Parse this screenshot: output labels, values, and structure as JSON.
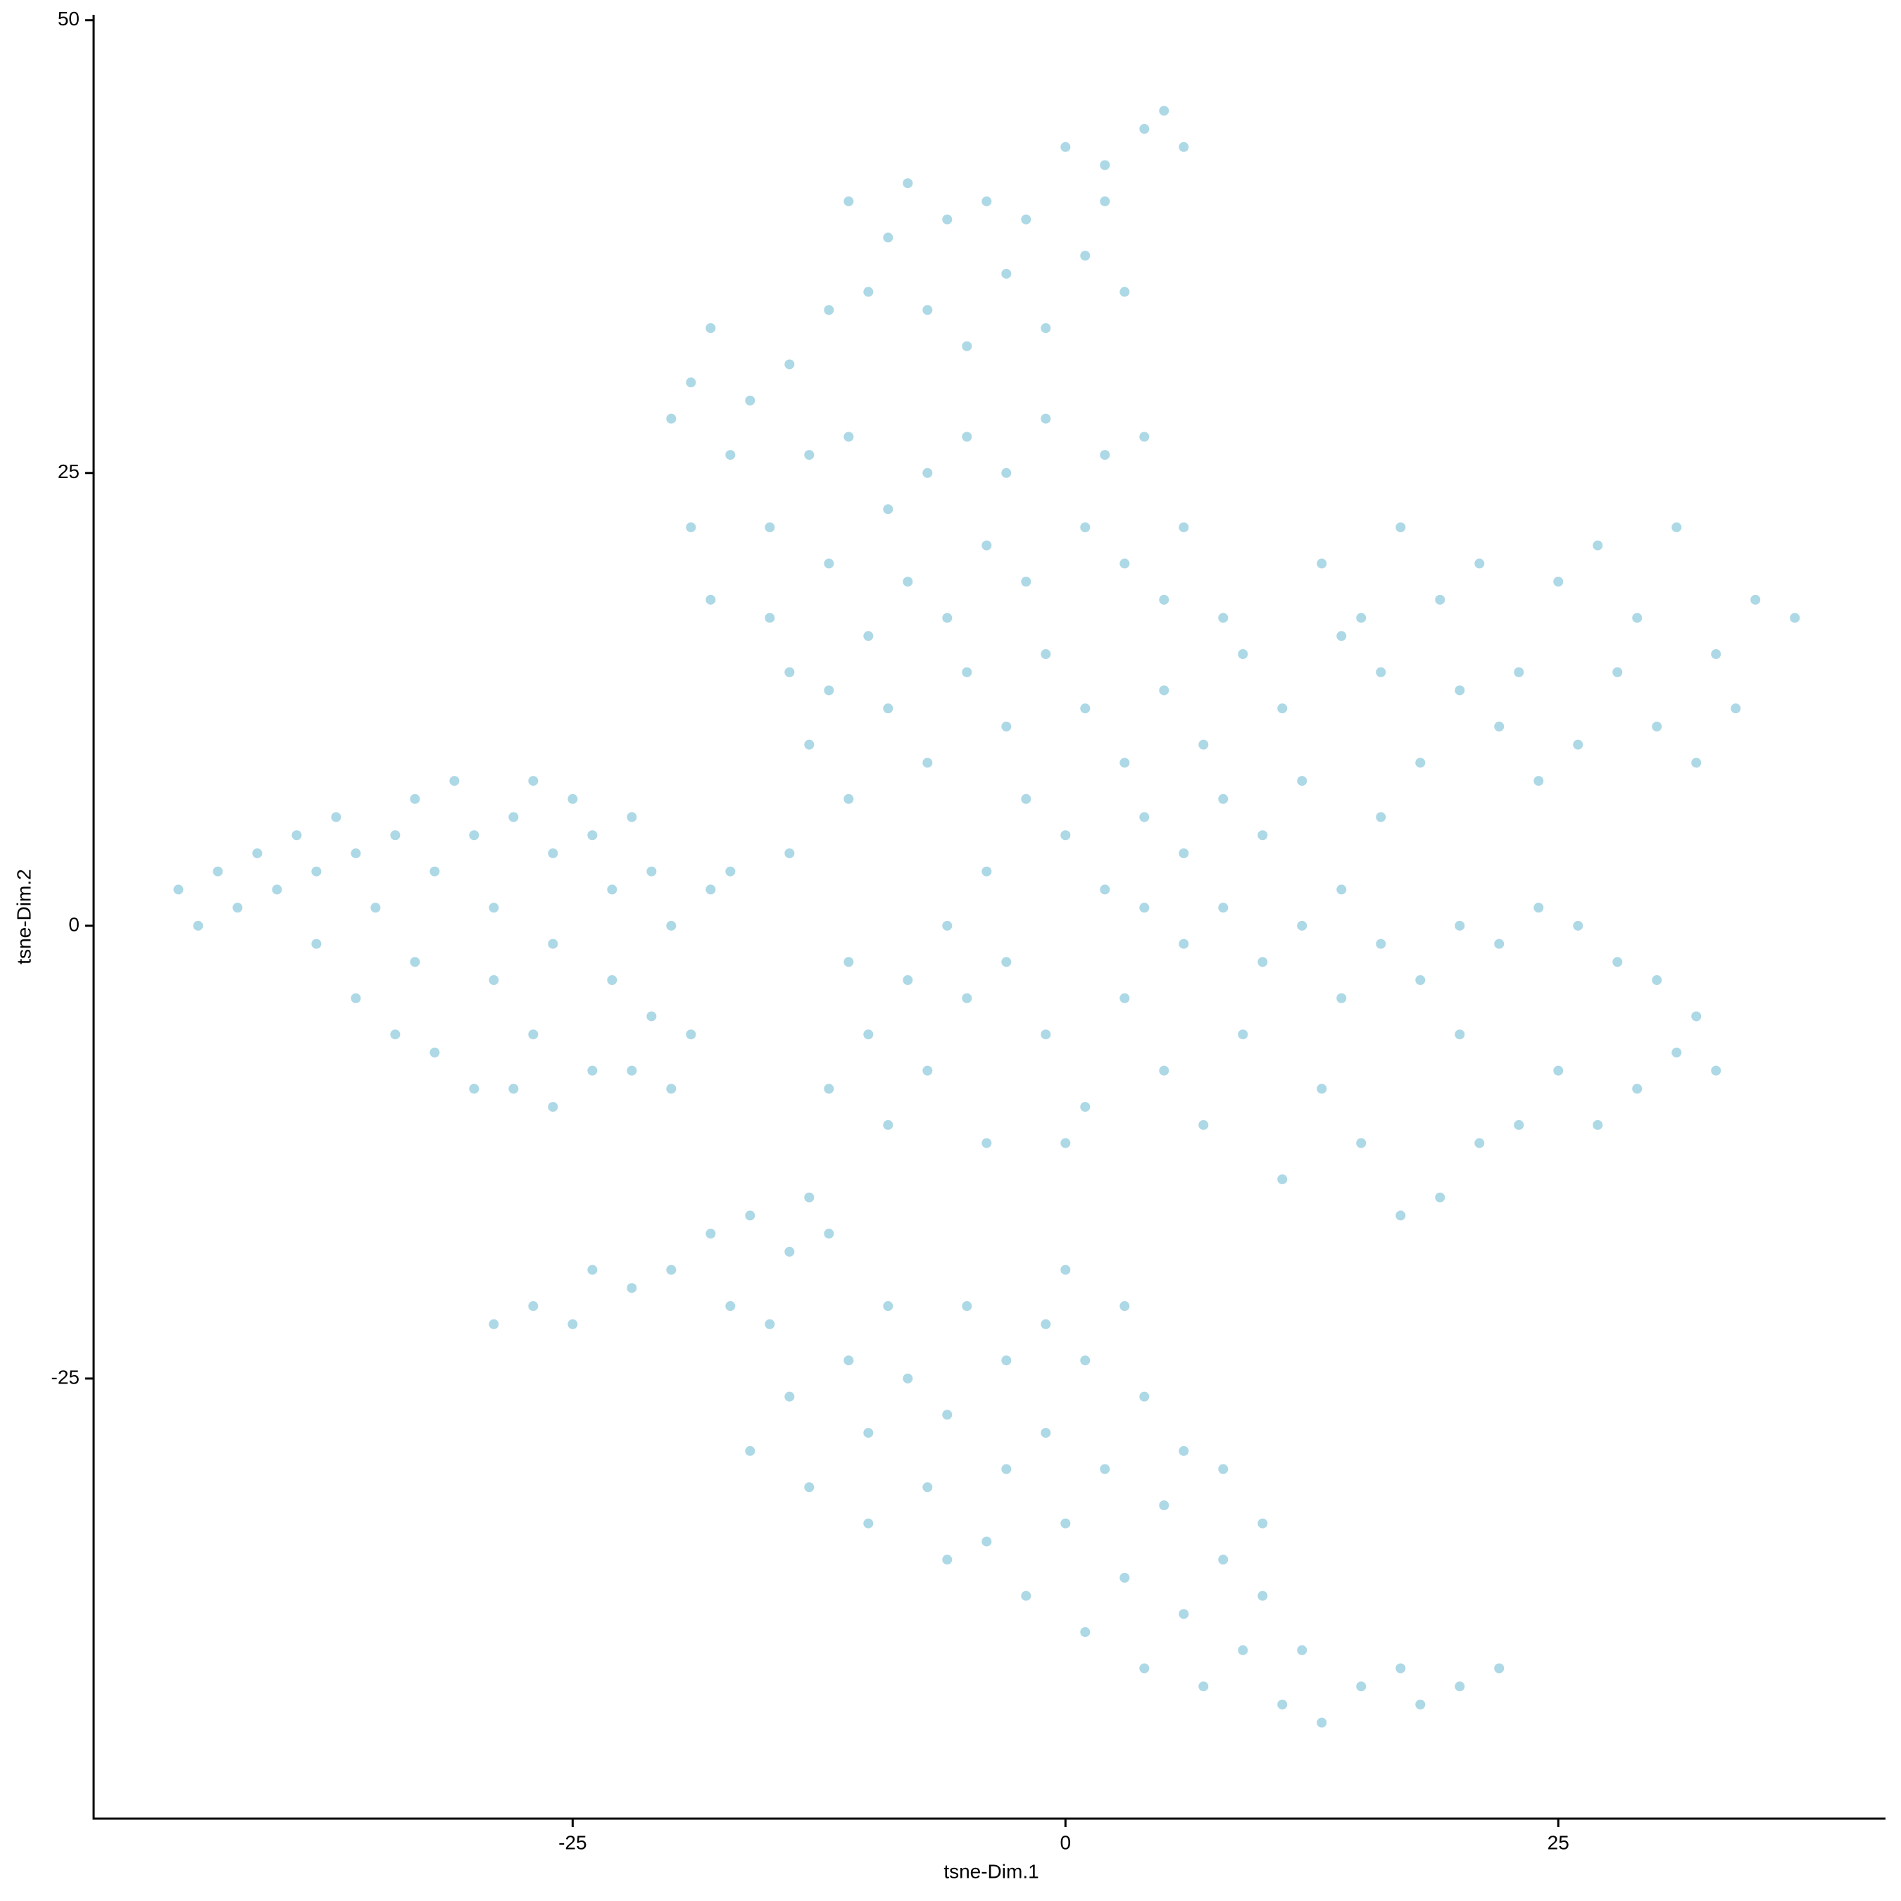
{
  "chart_data": {
    "type": "scatter",
    "x_label": "tsne-Dim.1",
    "y_label": "tsne-Dim.2",
    "color": "#add8e6",
    "grid": false,
    "xlim": [
      -49.3,
      41.6
    ],
    "ylim": [
      -49.3,
      50.3
    ],
    "xticks": [
      -25,
      0,
      25
    ],
    "yticks": [
      -25,
      0,
      25,
      50
    ],
    "x": [
      -45,
      -44,
      -43,
      -42,
      -41,
      -40,
      -39,
      -38,
      -37,
      -36,
      -35,
      -34,
      -33,
      -32,
      -31,
      -30,
      -29,
      -28,
      -27,
      -26,
      -25,
      -24,
      -23,
      -22,
      -21,
      -20,
      -18,
      -17,
      -36,
      -34,
      -32,
      -30,
      -28,
      -26,
      -24,
      -22,
      -20,
      -19,
      -33,
      -29,
      -26,
      -23,
      -38,
      -27,
      -21,
      -29,
      -27,
      -25,
      -24,
      -22,
      -20,
      -18,
      -17,
      -16,
      -14,
      -13,
      -12,
      -15,
      -16,
      -14,
      -13,
      -11,
      -10,
      -9,
      -8,
      -7,
      -6,
      -5,
      -4,
      -3,
      -3,
      -2,
      -1,
      0,
      0,
      1,
      1,
      2,
      3,
      4,
      4,
      5,
      6,
      6,
      7,
      8,
      9,
      10,
      11,
      12,
      13,
      15,
      17,
      18,
      20,
      22,
      3,
      -10,
      -6,
      -1,
      8,
      10,
      -11,
      -9,
      -8,
      -6,
      -4,
      -2,
      0,
      2,
      4,
      5,
      6,
      -12,
      -10,
      -7,
      -5,
      -3,
      -1,
      1,
      3,
      2,
      -14,
      -18,
      -19,
      -20,
      -16,
      -17,
      -19,
      -18,
      -15,
      -13,
      -11,
      -9,
      -7,
      -5,
      -3,
      -1,
      2,
      4,
      6,
      5,
      3,
      1,
      -2,
      -4,
      -6,
      -8,
      -10,
      -12,
      -14,
      -15,
      -13,
      -11,
      -9,
      -7,
      -5,
      -3,
      -1,
      1,
      3,
      5,
      7,
      9,
      11,
      13,
      15,
      17,
      19,
      21,
      23,
      25,
      27,
      29,
      31,
      33,
      35,
      37,
      34,
      32,
      30,
      28,
      26,
      24,
      22,
      20,
      18,
      16,
      14,
      12,
      10,
      8,
      6,
      4,
      2,
      0,
      -2,
      -4,
      -6,
      -8,
      -10,
      -12,
      -11,
      -9,
      -7,
      -5,
      -3,
      -1,
      1,
      3,
      5,
      7,
      9,
      11,
      13,
      15,
      17,
      19,
      21,
      23,
      25,
      27,
      29,
      31,
      33,
      32,
      30,
      28,
      26,
      24,
      22,
      20,
      18,
      16,
      14,
      12,
      10,
      8,
      6,
      4,
      -14,
      -4,
      0,
      14,
      20,
      16,
      8,
      -12
    ],
    "values": [
      2,
      0,
      3,
      1,
      4,
      2,
      5,
      3,
      6,
      4,
      1,
      5,
      7,
      3,
      8,
      5,
      1,
      6,
      8,
      4,
      7,
      5,
      2,
      6,
      3,
      0,
      2,
      3,
      -4,
      -6,
      -7,
      -9,
      -9,
      -10,
      -8,
      -8,
      -9,
      -6,
      -2,
      -3,
      -1,
      -3,
      -1,
      -6,
      -5,
      -22,
      -21,
      -22,
      -19,
      -20,
      -19,
      -17,
      -21,
      -16,
      -18,
      -15,
      -17,
      -22,
      -29,
      -26,
      -31,
      -24,
      -28,
      -21,
      -25,
      -31,
      -27,
      -21,
      -34,
      -24,
      -30,
      -37,
      -28,
      -19,
      -33,
      -24,
      -39,
      -30,
      -36,
      -26,
      -41,
      -32,
      -29,
      -38,
      -42,
      -35,
      -40,
      -37,
      -43,
      -40,
      -44,
      -42,
      -41,
      -43,
      -42,
      -41,
      -21,
      -33,
      -35,
      -22,
      -30,
      -33,
      40,
      38,
      41,
      39,
      40,
      39,
      43,
      42,
      44,
      45,
      43,
      34,
      35,
      34,
      32,
      36,
      33,
      37,
      35,
      40,
      31,
      33,
      30,
      28,
      29,
      26,
      22,
      18,
      22,
      26,
      27,
      23,
      25,
      27,
      25,
      28,
      26,
      27,
      22,
      18,
      20,
      22,
      19,
      21,
      17,
      19,
      16,
      20,
      14,
      17,
      10,
      7,
      12,
      9,
      14,
      11,
      15,
      12,
      9,
      13,
      10,
      15,
      12,
      20,
      17,
      22,
      18,
      20,
      14,
      19,
      21,
      17,
      22,
      15,
      18,
      17,
      12,
      9,
      11,
      14,
      10,
      8,
      11,
      13,
      9,
      14,
      16,
      8,
      5,
      7,
      4,
      6,
      2,
      5,
      7,
      3,
      0,
      -3,
      -6,
      -9,
      -2,
      -11,
      -8,
      -4,
      -2,
      -6,
      -10,
      -4,
      -8,
      -11,
      -6,
      -14,
      -9,
      -12,
      -16,
      -15,
      -12,
      -11,
      -8,
      -11,
      -9,
      -7,
      -8,
      -5,
      -3,
      -2,
      0,
      1,
      -1,
      0,
      -3,
      -1,
      2,
      0,
      -2,
      1,
      -1,
      1,
      4,
      -12,
      -12,
      -4,
      -6,
      6,
      17,
      13
    ]
  }
}
